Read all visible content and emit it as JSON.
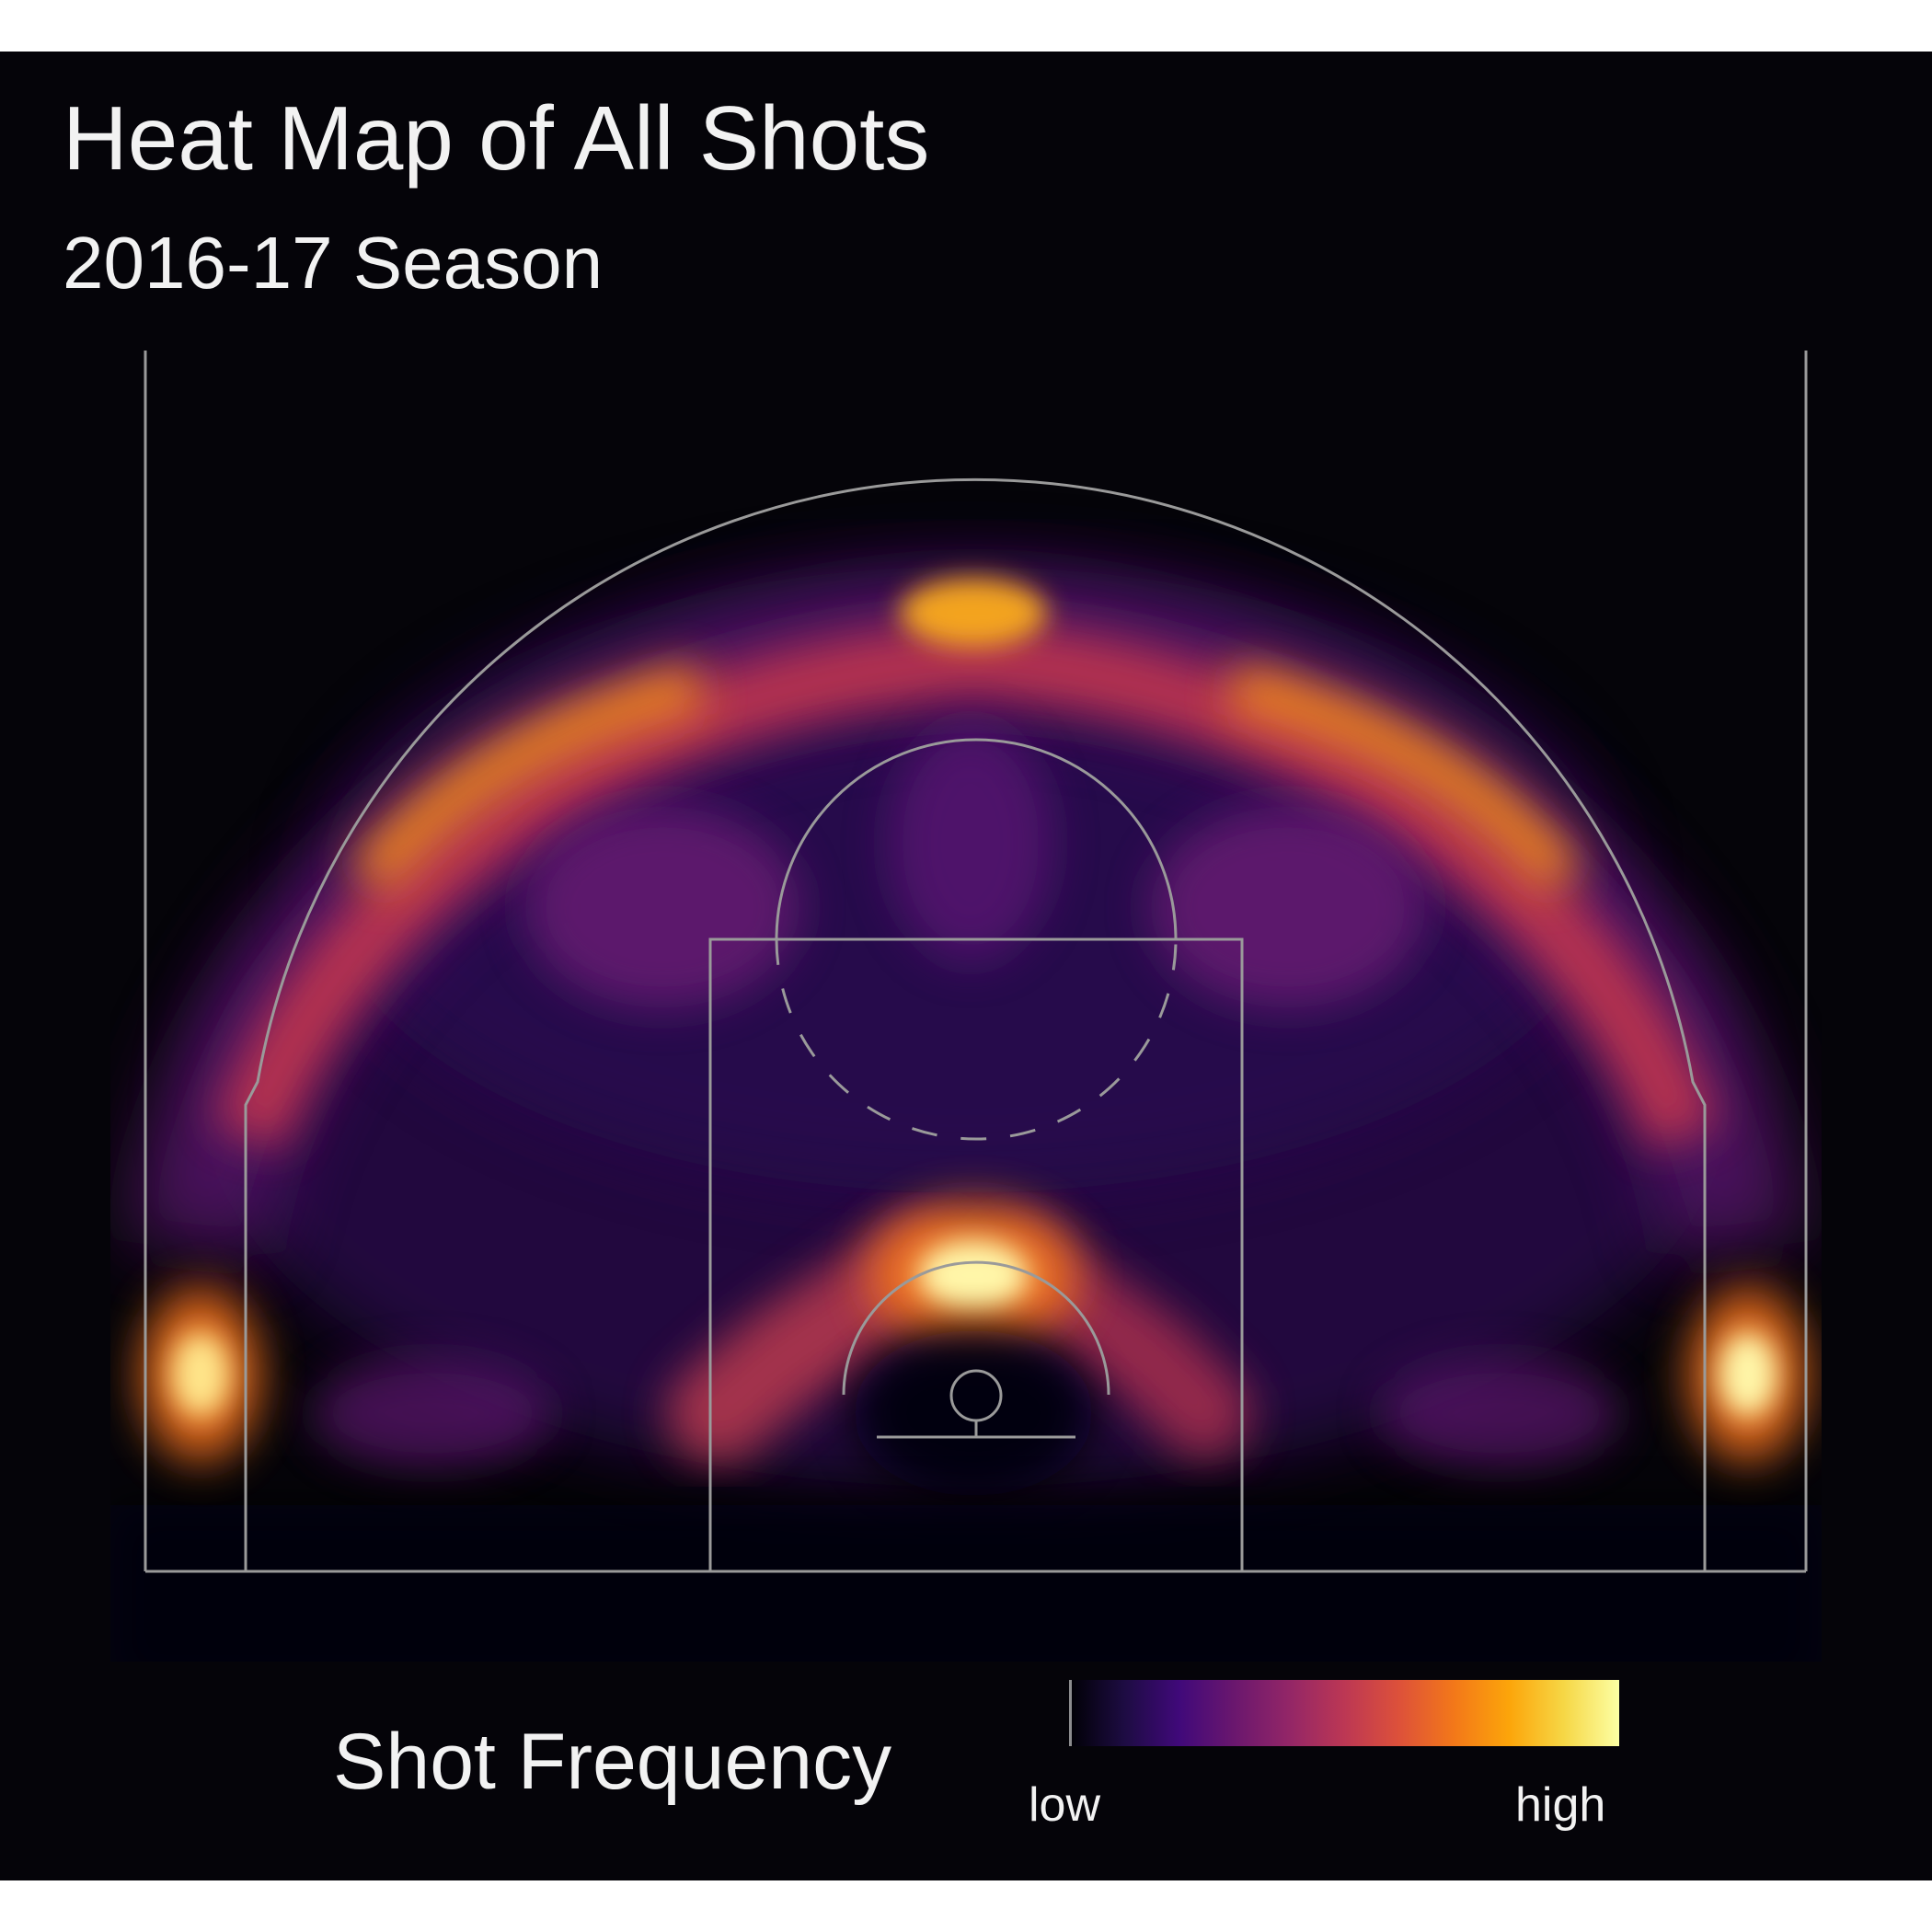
{
  "chart_data": {
    "type": "heatmap",
    "title": "Heat Map of All Shots",
    "subtitle": "2016-17 Season",
    "xlabel": "",
    "ylabel": "",
    "grid": false,
    "colormap": "inferno",
    "background": "#050409",
    "court_line_color": "#9a9a9a",
    "legend": {
      "title": "Shot Frequency",
      "low_label": "low",
      "high_label": "high",
      "placement": "bottom"
    },
    "xlim": [
      -25,
      25
    ],
    "ylim": [
      0,
      37.5
    ],
    "hotspots": [
      {
        "zone": "restricted area",
        "x": 0,
        "y": 10.5,
        "intensity": 1.0
      },
      {
        "zone": "left corner three",
        "x": -23.3,
        "y": 6.0,
        "intensity": 0.95
      },
      {
        "zone": "right corner three",
        "x": 23.3,
        "y": 6.0,
        "intensity": 0.95
      },
      {
        "zone": "top of key three",
        "x": 0,
        "y": 30.8,
        "intensity": 0.78
      },
      {
        "zone": "left wing three",
        "x": -12.0,
        "y": 27.0,
        "intensity": 0.72
      },
      {
        "zone": "right wing three",
        "x": 12.0,
        "y": 27.0,
        "intensity": 0.72
      },
      {
        "zone": "left lane",
        "x": -6.0,
        "y": 7.5,
        "intensity": 0.55
      },
      {
        "zone": "right lane",
        "x": 6.0,
        "y": 7.5,
        "intensity": 0.52
      },
      {
        "zone": "left mid-range",
        "x": -10.0,
        "y": 20.0,
        "intensity": 0.33
      },
      {
        "zone": "right mid-range",
        "x": 10.0,
        "y": 20.0,
        "intensity": 0.33
      },
      {
        "zone": "center mid-range",
        "x": 0,
        "y": 22.0,
        "intensity": 0.28
      }
    ]
  }
}
